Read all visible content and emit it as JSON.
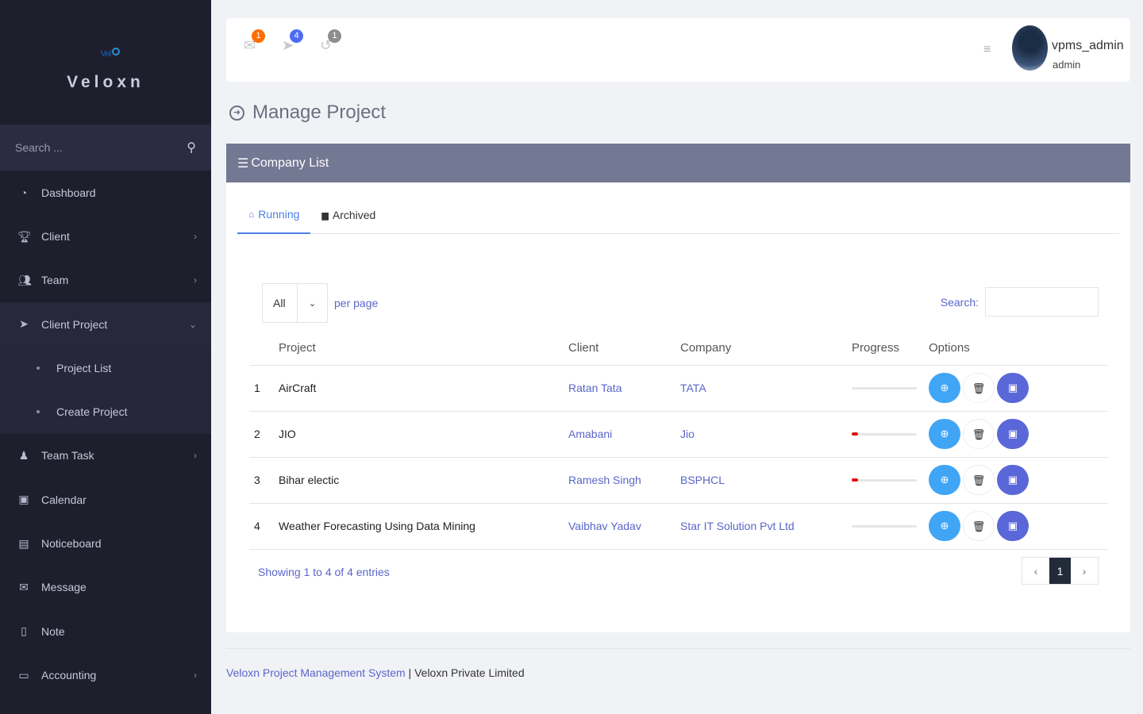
{
  "sidebar": {
    "brand": "Veloxn",
    "logo_text": "Veloxn",
    "search_placeholder": "Search ...",
    "items": [
      {
        "label": "Dashboard",
        "icon": "dashboard-icon"
      },
      {
        "label": "Client",
        "icon": "trophy-icon"
      },
      {
        "label": "Team",
        "icon": "users-icon"
      },
      {
        "label": "Client Project",
        "icon": "paper-plane-icon"
      },
      {
        "label": "Team Task",
        "icon": "user-task-icon"
      },
      {
        "label": "Calendar",
        "icon": "calendar-icon"
      },
      {
        "label": "Noticeboard",
        "icon": "clipboard-icon"
      },
      {
        "label": "Message",
        "icon": "envelope-icon"
      },
      {
        "label": "Note",
        "icon": "note-icon"
      },
      {
        "label": "Accounting",
        "icon": "credit-card-icon"
      }
    ],
    "subitems": [
      {
        "label": "Project List"
      },
      {
        "label": "Create Project"
      }
    ]
  },
  "topbar": {
    "mail_count": "1",
    "task_count": "4",
    "history_count": "1",
    "username": "vpms_admin",
    "role": "admin",
    "colors": {
      "mail": "#ff6d00",
      "task": "#4d6cf5",
      "history": "#8d8d8d"
    }
  },
  "page": {
    "title": "Manage Project"
  },
  "card": {
    "title": "Company List",
    "tabs": [
      {
        "label": "Running"
      },
      {
        "label": "Archived"
      }
    ],
    "per_page_value": "All",
    "per_page_label": "per page",
    "search_label": "Search:",
    "columns": [
      "",
      "Project",
      "Client",
      "Company",
      "Progress",
      "Options"
    ],
    "rows": [
      {
        "n": "1",
        "project": "AirCraft",
        "client": "Ratan Tata",
        "company": "TATA",
        "progress": 0
      },
      {
        "n": "2",
        "project": "JIO",
        "client": "Amabani",
        "company": "Jio",
        "progress": 10
      },
      {
        "n": "3",
        "project": "Bihar electic",
        "client": "Ramesh Singh",
        "company": "BSPHCL",
        "progress": 10
      },
      {
        "n": "4",
        "project": "Weather Forecasting Using Data Mining",
        "client": "Vaibhav Yadav",
        "company": "Star IT Solution Pvt Ltd",
        "progress": 0
      }
    ],
    "info": "Showing 1 to 4 of 4 entries",
    "pager": {
      "prev": "‹",
      "current": "1",
      "next": "›"
    }
  },
  "footer": {
    "system": "Veloxn Project Management System",
    "sep": " | ",
    "company": "Veloxn Private Limited"
  }
}
